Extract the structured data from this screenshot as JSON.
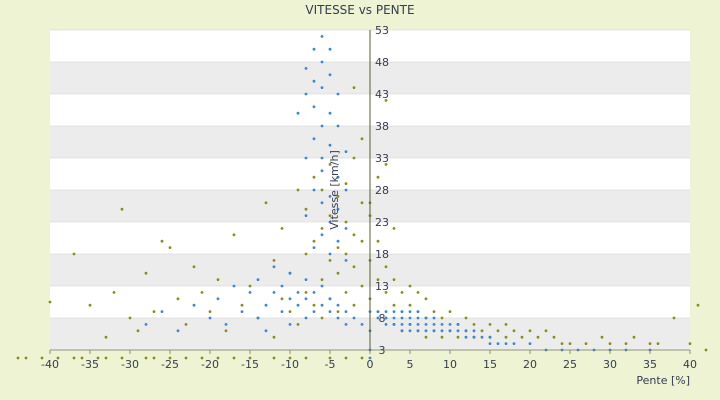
{
  "chart_data": {
    "type": "scatter",
    "title": "VITESSE vs PENTE",
    "xlabel": "Pente [%]",
    "ylabel": "Vitesse [km/h]",
    "xlim": [
      -40,
      40
    ],
    "ylim": [
      3,
      53
    ],
    "x_ticks": [
      -40,
      -35,
      -30,
      -25,
      -20,
      -15,
      -10,
      -5,
      0,
      5,
      10,
      15,
      20,
      25,
      30,
      35,
      40
    ],
    "y_ticks": [
      3,
      8,
      13,
      18,
      23,
      28,
      33,
      38,
      43,
      48,
      53
    ],
    "grid": true,
    "legend": "none",
    "series": [
      {
        "color": "#8b8b1a",
        "points": [
          [
            -44,
            1.5
          ],
          [
            -43,
            1.5
          ],
          [
            -41,
            1.5
          ],
          [
            -39,
            1.6
          ],
          [
            -37,
            1.6
          ],
          [
            -36,
            1.5
          ],
          [
            -34,
            1.6
          ],
          [
            -33,
            1.5
          ],
          [
            -31,
            1.6
          ],
          [
            -28,
            1.5
          ],
          [
            -27,
            1.5
          ],
          [
            -25,
            1.6
          ],
          [
            -23,
            1.5
          ],
          [
            -21,
            1.5
          ],
          [
            -19,
            1.6
          ],
          [
            -17,
            1.5
          ],
          [
            -15,
            1.5
          ],
          [
            -12,
            1.6
          ],
          [
            -10,
            1.5
          ],
          [
            -8,
            1.5
          ],
          [
            -5,
            1.5
          ],
          [
            -3,
            1.6
          ],
          [
            -1,
            1.5
          ],
          [
            -40,
            10.5
          ],
          [
            -37,
            18
          ],
          [
            -35,
            10
          ],
          [
            -33,
            5
          ],
          [
            -32,
            12
          ],
          [
            -31,
            25
          ],
          [
            -30,
            8
          ],
          [
            -29,
            6
          ],
          [
            -28,
            15
          ],
          [
            -27,
            9
          ],
          [
            -26,
            20
          ],
          [
            -25,
            19
          ],
          [
            -24,
            11
          ],
          [
            -23,
            7
          ],
          [
            -22,
            16
          ],
          [
            -21,
            12
          ],
          [
            -20,
            9
          ],
          [
            -19,
            14
          ],
          [
            -18,
            6
          ],
          [
            -17,
            21
          ],
          [
            -16,
            10
          ],
          [
            -15,
            13
          ],
          [
            -14,
            8
          ],
          [
            -13,
            26
          ],
          [
            -12,
            17
          ],
          [
            -12,
            5
          ],
          [
            -11,
            11
          ],
          [
            -11,
            22
          ],
          [
            -10,
            9
          ],
          [
            -10,
            15
          ],
          [
            -9,
            7
          ],
          [
            -9,
            28
          ],
          [
            -8,
            12
          ],
          [
            -8,
            18
          ],
          [
            -8,
            25
          ],
          [
            -7,
            10
          ],
          [
            -7,
            20
          ],
          [
            -7,
            30
          ],
          [
            -6,
            8
          ],
          [
            -6,
            14
          ],
          [
            -6,
            22
          ],
          [
            -6,
            28
          ],
          [
            -5,
            11
          ],
          [
            -5,
            17
          ],
          [
            -5,
            24
          ],
          [
            -5,
            32
          ],
          [
            -4,
            9
          ],
          [
            -4,
            15
          ],
          [
            -4,
            19
          ],
          [
            -4,
            27
          ],
          [
            -3,
            12
          ],
          [
            -3,
            18
          ],
          [
            -3,
            23
          ],
          [
            -3,
            29
          ],
          [
            -2,
            10
          ],
          [
            -2,
            16
          ],
          [
            -2,
            21
          ],
          [
            -2,
            33
          ],
          [
            -1,
            13
          ],
          [
            -1,
            20
          ],
          [
            -1,
            26
          ],
          [
            0,
            11
          ],
          [
            0,
            17
          ],
          [
            0,
            24
          ],
          [
            1,
            9
          ],
          [
            1,
            14
          ],
          [
            1,
            20
          ],
          [
            2,
            8
          ],
          [
            2,
            12
          ],
          [
            2,
            16
          ],
          [
            3,
            7
          ],
          [
            3,
            10
          ],
          [
            3,
            14
          ],
          [
            4,
            6
          ],
          [
            4,
            9
          ],
          [
            4,
            12
          ],
          [
            5,
            7
          ],
          [
            5,
            10
          ],
          [
            5,
            13
          ],
          [
            6,
            6
          ],
          [
            6,
            9
          ],
          [
            6,
            12
          ],
          [
            7,
            5
          ],
          [
            7,
            8
          ],
          [
            7,
            11
          ],
          [
            8,
            6
          ],
          [
            8,
            9
          ],
          [
            9,
            5
          ],
          [
            9,
            8
          ],
          [
            10,
            6
          ],
          [
            10,
            9
          ],
          [
            11,
            5
          ],
          [
            11,
            7
          ],
          [
            12,
            6
          ],
          [
            12,
            8
          ],
          [
            13,
            5
          ],
          [
            13,
            7
          ],
          [
            14,
            6
          ],
          [
            15,
            5
          ],
          [
            15,
            7
          ],
          [
            16,
            6
          ],
          [
            17,
            5
          ],
          [
            17,
            7
          ],
          [
            18,
            6
          ],
          [
            19,
            5
          ],
          [
            20,
            6
          ],
          [
            21,
            5
          ],
          [
            22,
            6
          ],
          [
            23,
            5
          ],
          [
            24,
            4
          ],
          [
            25,
            4
          ],
          [
            27,
            4
          ],
          [
            29,
            5
          ],
          [
            30,
            4
          ],
          [
            32,
            4
          ],
          [
            33,
            5
          ],
          [
            35,
            4
          ],
          [
            36,
            4
          ],
          [
            38,
            8
          ],
          [
            40,
            4
          ],
          [
            41,
            10
          ],
          [
            42,
            3
          ],
          [
            2,
            32
          ],
          [
            2,
            42
          ],
          [
            1,
            30
          ],
          [
            -2,
            44
          ],
          [
            -1,
            36
          ],
          [
            3,
            22
          ],
          [
            0,
            26
          ]
        ]
      },
      {
        "color": "#3a86d6",
        "points": [
          [
            -6,
            52
          ],
          [
            -7,
            50
          ],
          [
            -5,
            50
          ],
          [
            -6,
            48
          ],
          [
            -8,
            47
          ],
          [
            -7,
            45
          ],
          [
            -5,
            46
          ],
          [
            -6,
            44
          ],
          [
            -8,
            43
          ],
          [
            -4,
            43
          ],
          [
            -7,
            41
          ],
          [
            -5,
            40
          ],
          [
            -6,
            38
          ],
          [
            -9,
            40
          ],
          [
            -4,
            38
          ],
          [
            -7,
            36
          ],
          [
            -5,
            35
          ],
          [
            -6,
            33
          ],
          [
            -3,
            34
          ],
          [
            -8,
            33
          ],
          [
            -6,
            31
          ],
          [
            -4,
            30
          ],
          [
            -7,
            28
          ],
          [
            -5,
            27
          ],
          [
            -3,
            28
          ],
          [
            -6,
            26
          ],
          [
            -4,
            25
          ],
          [
            -8,
            24
          ],
          [
            -5,
            23
          ],
          [
            -3,
            22
          ],
          [
            -6,
            21
          ],
          [
            -4,
            20
          ],
          [
            -7,
            19
          ],
          [
            -5,
            18
          ],
          [
            -3,
            17
          ],
          [
            -28,
            7
          ],
          [
            -26,
            9
          ],
          [
            -24,
            6
          ],
          [
            -22,
            10
          ],
          [
            -20,
            8
          ],
          [
            -19,
            11
          ],
          [
            -18,
            7
          ],
          [
            -17,
            13
          ],
          [
            -16,
            9
          ],
          [
            -15,
            12
          ],
          [
            -14,
            8
          ],
          [
            -14,
            14
          ],
          [
            -13,
            10
          ],
          [
            -13,
            6
          ],
          [
            -12,
            12
          ],
          [
            -12,
            16
          ],
          [
            -11,
            9
          ],
          [
            -11,
            13
          ],
          [
            -10,
            7
          ],
          [
            -10,
            11
          ],
          [
            -10,
            15
          ],
          [
            -9,
            10
          ],
          [
            -9,
            12
          ],
          [
            -8,
            8
          ],
          [
            -8,
            11
          ],
          [
            -8,
            14
          ],
          [
            -7,
            9
          ],
          [
            -7,
            12
          ],
          [
            -6,
            10
          ],
          [
            -6,
            13
          ],
          [
            -5,
            9
          ],
          [
            -5,
            11
          ],
          [
            -4,
            8
          ],
          [
            -4,
            10
          ],
          [
            -3,
            9
          ],
          [
            -3,
            7
          ],
          [
            -2,
            8
          ],
          [
            -1,
            7
          ],
          [
            0,
            1.5
          ],
          [
            0,
            3
          ],
          [
            0,
            6
          ],
          [
            0,
            9
          ],
          [
            1,
            9
          ],
          [
            1,
            8
          ],
          [
            2,
            8
          ],
          [
            2,
            9
          ],
          [
            2,
            7
          ],
          [
            3,
            8
          ],
          [
            3,
            9
          ],
          [
            3,
            7
          ],
          [
            4,
            8
          ],
          [
            4,
            7
          ],
          [
            4,
            9
          ],
          [
            4,
            6
          ],
          [
            5,
            8
          ],
          [
            5,
            7
          ],
          [
            5,
            9
          ],
          [
            5,
            6
          ],
          [
            6,
            8
          ],
          [
            6,
            7
          ],
          [
            6,
            9
          ],
          [
            6,
            6
          ],
          [
            7,
            7
          ],
          [
            7,
            8
          ],
          [
            7,
            6
          ],
          [
            8,
            7
          ],
          [
            8,
            6
          ],
          [
            8,
            8
          ],
          [
            9,
            7
          ],
          [
            9,
            6
          ],
          [
            10,
            7
          ],
          [
            10,
            6
          ],
          [
            11,
            6
          ],
          [
            11,
            7
          ],
          [
            12,
            6
          ],
          [
            12,
            5
          ],
          [
            13,
            6
          ],
          [
            13,
            5
          ],
          [
            14,
            5
          ],
          [
            15,
            5
          ],
          [
            15,
            4
          ],
          [
            16,
            4
          ],
          [
            17,
            4
          ],
          [
            18,
            4
          ],
          [
            20,
            4
          ],
          [
            22,
            3
          ],
          [
            24,
            3
          ],
          [
            26,
            3
          ],
          [
            28,
            3
          ],
          [
            30,
            3
          ],
          [
            32,
            3
          ],
          [
            35,
            3
          ]
        ]
      }
    ]
  }
}
